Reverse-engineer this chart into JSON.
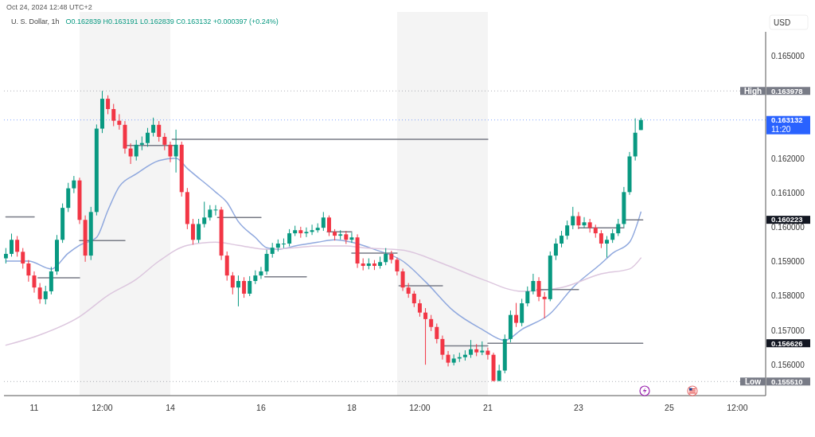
{
  "chart_data": {
    "type": "candlestick",
    "title": "U. S. Dollar, 1h",
    "subtitle": "O0.162839 H0.163191 L0.162839 C0.163132 +0.000397 (+0.24%)",
    "ylabel": "USD",
    "annotations": [
      "Oct 24, 2024 12:48 UTC+2",
      "11:20"
    ],
    "colors": [
      "#089981",
      "#089981",
      "#f23645",
      "#f23645",
      "#f23645",
      "#f23645",
      "#f23645",
      "#089981",
      "#089981",
      "#089981",
      "#089981",
      "#089981",
      "#089981",
      "#f23645",
      "#f23645",
      "#089981",
      "#089981",
      "#089981",
      "#f23645",
      "#f23645",
      "#f23645",
      "#f23645",
      "#f23645",
      "#089981",
      "#089981",
      "#089981",
      "#089981",
      "#f23645",
      "#f23645",
      "#f23645",
      "#089981",
      "#f23645",
      "#f23645",
      "#f23645",
      "#089981",
      "#089981",
      "#089981",
      "#089981",
      "#f23645",
      "#f23645",
      "#f23645",
      "#089981",
      "#f23645",
      "#089981",
      "#089981",
      "#089981",
      "#089981",
      "#089981",
      "#089981",
      "#089981",
      "#089981",
      "#089981",
      "#f23645",
      "#089981",
      "#089981",
      "#089981",
      "#089981",
      "#f23645",
      "#f23645",
      "#089981",
      "#f23645",
      "#089981",
      "#f23645",
      "#f23645",
      "#089981",
      "#f23645",
      "#089981",
      "#089981",
      "#f23645",
      "#f23645",
      "#f23645",
      "#f23645",
      "#f23645",
      "#f23645",
      "#f23645",
      "#f23645",
      "#f23645",
      "#f23645",
      "#f23645",
      "#089981",
      "#089981",
      "#089981",
      "#089981",
      "#f23645",
      "#089981",
      "#f23645",
      "#f23645",
      "#089981",
      "#089981",
      "#089981",
      "#f23645",
      "#089981",
      "#089981",
      "#089981",
      "#f23645",
      "#f23645",
      "#089981",
      "#089981",
      "#089981",
      "#089981",
      "#089981",
      "#f23645",
      "#089981",
      "#f23645",
      "#f23645",
      "#f23645",
      "#089981",
      "#089981",
      "#089981",
      "#089981",
      "#089981",
      "#089981",
      "#089981"
    ],
    "x": [
      "2024-10-10T09:00",
      "2024-10-10T12:00",
      "2024-10-10T15:00",
      "2024-10-10T18:00",
      "2024-10-10T21:00",
      "2024-10-11T00:00",
      "2024-10-11T03:00",
      "2024-10-11T06:00",
      "2024-10-11T09:00",
      "2024-10-11T12:00",
      "2024-10-11T15:00",
      "2024-10-11T18:00",
      "2024-10-11T21:00",
      "2024-10-12T00:00",
      "2024-10-12T03:00",
      "2024-10-12T06:00",
      "2024-10-12T09:00",
      "2024-10-12T12:00",
      "2024-10-12T15:00",
      "2024-10-12T18:00",
      "2024-10-12T21:00",
      "2024-10-13T00:00",
      "2024-10-13T03:00",
      "2024-10-13T06:00",
      "2024-10-13T09:00",
      "2024-10-13T12:00",
      "2024-10-13T15:00",
      "2024-10-13T18:00",
      "2024-10-13T21:00",
      "2024-10-14T00:00",
      "2024-10-14T03:00",
      "2024-10-14T06:00",
      "2024-10-14T09:00",
      "2024-10-14T12:00",
      "2024-10-14T15:00",
      "2024-10-14T18:00",
      "2024-10-14T21:00",
      "2024-10-15T00:00",
      "2024-10-15T03:00",
      "2024-10-15T06:00",
      "2024-10-15T09:00",
      "2024-10-15T12:00",
      "2024-10-15T15:00",
      "2024-10-15T18:00",
      "2024-10-15T21:00",
      "2024-10-16T00:00",
      "2024-10-16T03:00",
      "2024-10-16T06:00",
      "2024-10-16T09:00",
      "2024-10-16T12:00",
      "2024-10-16T15:00",
      "2024-10-16T18:00",
      "2024-10-16T21:00",
      "2024-10-17T00:00",
      "2024-10-17T03:00",
      "2024-10-17T06:00",
      "2024-10-17T09:00",
      "2024-10-17T12:00",
      "2024-10-17T15:00",
      "2024-10-17T18:00",
      "2024-10-17T21:00",
      "2024-10-18T00:00",
      "2024-10-18T03:00",
      "2024-10-18T06:00",
      "2024-10-18T09:00",
      "2024-10-18T12:00",
      "2024-10-18T15:00",
      "2024-10-18T18:00",
      "2024-10-18T21:00",
      "2024-10-19T00:00",
      "2024-10-19T03:00",
      "2024-10-19T06:00",
      "2024-10-19T09:00",
      "2024-10-19T12:00",
      "2024-10-19T15:00",
      "2024-10-19T18:00",
      "2024-10-19T21:00",
      "2024-10-20T00:00",
      "2024-10-20T03:00",
      "2024-10-20T06:00",
      "2024-10-20T09:00",
      "2024-10-20T12:00",
      "2024-10-20T15:00",
      "2024-10-20T18:00",
      "2024-10-20T21:00",
      "2024-10-21T00:00",
      "2024-10-21T03:00",
      "2024-10-21T06:00",
      "2024-10-21T09:00",
      "2024-10-21T12:00",
      "2024-10-21T15:00",
      "2024-10-21T18:00",
      "2024-10-21T21:00",
      "2024-10-22T00:00",
      "2024-10-22T03:00",
      "2024-10-22T06:00",
      "2024-10-22T09:00",
      "2024-10-22T12:00",
      "2024-10-22T15:00",
      "2024-10-22T18:00",
      "2024-10-22T21:00",
      "2024-10-23T00:00",
      "2024-10-23T03:00",
      "2024-10-23T06:00",
      "2024-10-23T09:00",
      "2024-10-23T12:00",
      "2024-10-23T15:00",
      "2024-10-23T18:00",
      "2024-10-23T21:00",
      "2024-10-24T00:00",
      "2024-10-24T03:00",
      "2024-10-24T06:00",
      "2024-10-24T09:00"
    ],
    "ohlc": [
      [
        0.1591,
        0.1594,
        0.15895,
        0.15923
      ],
      [
        0.15923,
        0.15982,
        0.15915,
        0.15964
      ],
      [
        0.15964,
        0.15975,
        0.15915,
        0.15929
      ],
      [
        0.15929,
        0.1594,
        0.1588,
        0.15895
      ],
      [
        0.15895,
        0.15905,
        0.15842,
        0.1586
      ],
      [
        0.1586,
        0.15872,
        0.1581,
        0.15825
      ],
      [
        0.15825,
        0.15838,
        0.15778,
        0.15791
      ],
      [
        0.15791,
        0.1583,
        0.15776,
        0.15814
      ],
      [
        0.15814,
        0.15885,
        0.15805,
        0.15872
      ],
      [
        0.15872,
        0.15978,
        0.15862,
        0.15964
      ],
      [
        0.15964,
        0.1607,
        0.15955,
        0.16057
      ],
      [
        0.16057,
        0.1613,
        0.16045,
        0.16114
      ],
      [
        0.16114,
        0.1615,
        0.161,
        0.16137
      ],
      [
        0.16137,
        0.16145,
        0.1601,
        0.16022
      ],
      [
        0.16022,
        0.16035,
        0.159,
        0.15918
      ],
      [
        0.15918,
        0.1606,
        0.15905,
        0.16045
      ],
      [
        0.16045,
        0.163,
        0.16035,
        0.16288
      ],
      [
        0.16288,
        0.163978,
        0.16275,
        0.16375
      ],
      [
        0.16375,
        0.16385,
        0.1633,
        0.16345
      ],
      [
        0.16345,
        0.1636,
        0.16295,
        0.16311
      ],
      [
        0.16311,
        0.1633,
        0.16285,
        0.16299
      ],
      [
        0.16299,
        0.1631,
        0.16215,
        0.1623
      ],
      [
        0.1623,
        0.16245,
        0.16185,
        0.16207
      ],
      [
        0.16207,
        0.16255,
        0.16195,
        0.16241
      ],
      [
        0.16241,
        0.16265,
        0.16225,
        0.16246
      ],
      [
        0.16246,
        0.1629,
        0.16235,
        0.16276
      ],
      [
        0.16276,
        0.1632,
        0.16265,
        0.16299
      ],
      [
        0.16299,
        0.1631,
        0.1625,
        0.16264
      ],
      [
        0.16264,
        0.16275,
        0.16225,
        0.16241
      ],
      [
        0.16241,
        0.1625,
        0.1619,
        0.16207
      ],
      [
        0.16207,
        0.16285,
        0.1616,
        0.16241
      ],
      [
        0.16241,
        0.1625,
        0.1609,
        0.16103
      ],
      [
        0.16103,
        0.16115,
        0.15995,
        0.1601
      ],
      [
        0.1601,
        0.16025,
        0.1595,
        0.15964
      ],
      [
        0.15964,
        0.16025,
        0.15955,
        0.1601
      ],
      [
        0.1601,
        0.16075,
        0.16,
        0.16029
      ],
      [
        0.16029,
        0.16065,
        0.1602,
        0.16052
      ],
      [
        0.16052,
        0.16065,
        0.16035,
        0.16052
      ],
      [
        0.16052,
        0.1606,
        0.15905,
        0.15918
      ],
      [
        0.15918,
        0.1593,
        0.15845,
        0.1586
      ],
      [
        0.1586,
        0.1587,
        0.15805,
        0.15825
      ],
      [
        0.15825,
        0.1586,
        0.1577,
        0.15844
      ],
      [
        0.15844,
        0.15855,
        0.15795,
        0.15807
      ],
      [
        0.15807,
        0.15858,
        0.158,
        0.15844
      ],
      [
        0.15844,
        0.15875,
        0.15835,
        0.1586
      ],
      [
        0.1586,
        0.15885,
        0.1585,
        0.15872
      ],
      [
        0.15872,
        0.15935,
        0.15862,
        0.15923
      ],
      [
        0.15923,
        0.15955,
        0.15912,
        0.15941
      ],
      [
        0.15941,
        0.15965,
        0.1593,
        0.15953
      ],
      [
        0.15953,
        0.15968,
        0.1594,
        0.15953
      ],
      [
        0.15953,
        0.15995,
        0.15945,
        0.15983
      ],
      [
        0.15983,
        0.16005,
        0.15975,
        0.15992
      ],
      [
        0.15992,
        0.16002,
        0.1597,
        0.15983
      ],
      [
        0.15983,
        0.16,
        0.15972,
        0.15987
      ],
      [
        0.15987,
        0.16008,
        0.15978,
        0.15992
      ],
      [
        0.15992,
        0.16012,
        0.15985,
        0.15999
      ],
      [
        0.15999,
        0.16045,
        0.1599,
        0.16029
      ],
      [
        0.16029,
        0.16035,
        0.15975,
        0.15987
      ],
      [
        0.15987,
        0.15995,
        0.15962,
        0.15976
      ],
      [
        0.15976,
        0.15992,
        0.15965,
        0.1598
      ],
      [
        0.1598,
        0.1599,
        0.15952,
        0.15964
      ],
      [
        0.15964,
        0.15985,
        0.15955,
        0.15971
      ],
      [
        0.15971,
        0.1598,
        0.15882,
        0.15895
      ],
      [
        0.15895,
        0.1591,
        0.15875,
        0.15888
      ],
      [
        0.15888,
        0.1591,
        0.15878,
        0.15895
      ],
      [
        0.15895,
        0.15905,
        0.15876,
        0.15888
      ],
      [
        0.15888,
        0.15915,
        0.1588,
        0.15899
      ],
      [
        0.15899,
        0.1594,
        0.1589,
        0.15923
      ],
      [
        0.15923,
        0.15932,
        0.15895,
        0.15906
      ],
      [
        0.15906,
        0.15912,
        0.1586,
        0.15872
      ],
      [
        0.15872,
        0.1588,
        0.15815,
        0.15825
      ],
      [
        0.15825,
        0.15838,
        0.15795,
        0.15807
      ],
      [
        0.15807,
        0.15815,
        0.15768,
        0.15779
      ],
      [
        0.15779,
        0.1579,
        0.1574,
        0.15752
      ],
      [
        0.15752,
        0.15765,
        0.156,
        0.15733
      ],
      [
        0.15733,
        0.15745,
        0.15698,
        0.1571
      ],
      [
        0.1571,
        0.1572,
        0.15662,
        0.15675
      ],
      [
        0.15675,
        0.15685,
        0.15615,
        0.15629
      ],
      [
        0.15629,
        0.1564,
        0.15595,
        0.15606
      ],
      [
        0.15606,
        0.1563,
        0.15598,
        0.15618
      ],
      [
        0.15618,
        0.15635,
        0.15608,
        0.15622
      ],
      [
        0.15622,
        0.15642,
        0.15612,
        0.15629
      ],
      [
        0.15629,
        0.15672,
        0.1562,
        0.15645
      ],
      [
        0.15645,
        0.1566,
        0.15625,
        0.15636
      ],
      [
        0.15636,
        0.15668,
        0.15628,
        0.15641
      ],
      [
        0.15641,
        0.1565,
        0.15615,
        0.15629
      ],
      [
        0.15629,
        0.15635,
        0.15551,
        0.15553
      ],
      [
        0.15553,
        0.156,
        0.15552,
        0.15583
      ],
      [
        0.15583,
        0.15688,
        0.15575,
        0.15675
      ],
      [
        0.15675,
        0.15758,
        0.15665,
        0.15745
      ],
      [
        0.15745,
        0.1578,
        0.1571,
        0.15722
      ],
      [
        0.15722,
        0.15792,
        0.15712,
        0.15779
      ],
      [
        0.15779,
        0.15828,
        0.1577,
        0.15814
      ],
      [
        0.15814,
        0.15865,
        0.15805,
        0.15844
      ],
      [
        0.15844,
        0.15855,
        0.15785,
        0.15798
      ],
      [
        0.15798,
        0.15812,
        0.15735,
        0.15791
      ],
      [
        0.15791,
        0.1593,
        0.15785,
        0.15918
      ],
      [
        0.15918,
        0.15968,
        0.15905,
        0.15953
      ],
      [
        0.15953,
        0.1599,
        0.15942,
        0.15976
      ],
      [
        0.15976,
        0.1602,
        0.15965,
        0.16006
      ],
      [
        0.16006,
        0.1606,
        0.15995,
        0.16033
      ],
      [
        0.16033,
        0.16045,
        0.15995,
        0.16006
      ],
      [
        0.16006,
        0.1603,
        0.15998,
        0.16015
      ],
      [
        0.16015,
        0.16025,
        0.15985,
        0.15999
      ],
      [
        0.15999,
        0.16008,
        0.1597,
        0.15983
      ],
      [
        0.15983,
        0.15992,
        0.1594,
        0.15953
      ],
      [
        0.15953,
        0.15975,
        0.15912,
        0.15964
      ],
      [
        0.15964,
        0.15995,
        0.15955,
        0.15983
      ],
      [
        0.15983,
        0.16025,
        0.15975,
        0.1601
      ],
      [
        0.1601,
        0.16118,
        0.16,
        0.16103
      ],
      [
        0.16103,
        0.1622,
        0.16095,
        0.16207
      ],
      [
        0.16207,
        0.16318,
        0.16195,
        0.16276
      ],
      [
        0.162839,
        0.163191,
        0.162839,
        0.163132
      ]
    ],
    "series": [
      {
        "type": "line",
        "color": "#8fa8de",
        "x": [
          "2024-10-10T09:00",
          "2024-10-10T21:00",
          "2024-10-11T09:00",
          "2024-10-11T18:00",
          "2024-10-12T00:00",
          "2024-10-12T09:00",
          "2024-10-12T15:00",
          "2024-10-12T21:00",
          "2024-10-13T06:00",
          "2024-10-13T18:00",
          "2024-10-14T03:00",
          "2024-10-14T09:00",
          "2024-10-15T00:00",
          "2024-10-15T06:00",
          "2024-10-15T12:00",
          "2024-10-15T21:00",
          "2024-10-16T03:00",
          "2024-10-16T09:00",
          "2024-10-16T18:00",
          "2024-10-17T06:00",
          "2024-10-17T15:00",
          "2024-10-18T00:00",
          "2024-10-18T12:00",
          "2024-10-19T03:00",
          "2024-10-19T15:00",
          "2024-10-20T06:00",
          "2024-10-20T21:00",
          "2024-10-21T09:00",
          "2024-10-21T18:00",
          "2024-10-22T09:00",
          "2024-10-22T21:00",
          "2024-10-23T12:00",
          "2024-10-23T18:00",
          "2024-10-24T03:00",
          "2024-10-24T09:00"
        ],
        "values": [
          0.15902,
          0.15902,
          0.15879,
          0.15925,
          0.15948,
          0.15971,
          0.1605,
          0.16119,
          0.16156,
          0.16195,
          0.16202,
          0.16172,
          0.16103,
          0.16073,
          0.16017,
          0.15971,
          0.15941,
          0.15936,
          0.15946,
          0.15957,
          0.15964,
          0.15957,
          0.15936,
          0.15902,
          0.15842,
          0.15756,
          0.15703,
          0.15671,
          0.15703,
          0.15749,
          0.15825,
          0.15895,
          0.15925,
          0.15957,
          0.16045
        ]
      },
      {
        "type": "line",
        "color": "#dcc6de",
        "x": [
          "2024-10-10T09:00",
          "2024-10-11T03:00",
          "2024-10-12T00:00",
          "2024-10-12T15:00",
          "2024-10-13T06:00",
          "2024-10-13T18:00",
          "2024-10-14T09:00",
          "2024-10-15T00:00",
          "2024-10-15T12:00",
          "2024-10-16T03:00",
          "2024-10-16T18:00",
          "2024-10-17T06:00",
          "2024-10-17T21:00",
          "2024-10-18T06:00",
          "2024-10-19T03:00",
          "2024-10-20T00:00",
          "2024-10-20T21:00",
          "2024-10-21T18:00",
          "2024-10-22T15:00",
          "2024-10-23T12:00",
          "2024-10-24T03:00",
          "2024-10-24T09:00"
        ],
        "values": [
          0.15657,
          0.15687,
          0.1574,
          0.15802,
          0.15849,
          0.15902,
          0.15948,
          0.15957,
          0.15948,
          0.15936,
          0.15941,
          0.15946,
          0.15946,
          0.15941,
          0.15934,
          0.15895,
          0.15849,
          0.15814,
          0.15825,
          0.15865,
          0.15879,
          0.15911
        ]
      },
      {
        "type": "line",
        "color": "#787b86",
        "x": [
          "2024-10-10T09:00",
          "2024-10-11T00:00"
        ],
        "values": [
          0.16031,
          0.16031
        ]
      },
      {
        "type": "line",
        "color": "#787b86",
        "x": [
          "2024-10-11T02:00",
          "2024-10-12T00:00"
        ],
        "values": [
          0.15853,
          0.15853
        ]
      },
      {
        "type": "line",
        "color": "#787b86",
        "x": [
          "2024-10-12T00:00",
          "2024-10-13T00:00"
        ],
        "values": [
          0.15962,
          0.15962
        ]
      },
      {
        "type": "line",
        "color": "#787b86",
        "x": [
          "2024-10-13T00:00",
          "2024-10-14T03:00"
        ],
        "values": [
          0.16239,
          0.16239
        ]
      },
      {
        "type": "line",
        "color": "#787b86",
        "x": [
          "2024-10-14T01:00",
          "2024-10-21T00:00"
        ],
        "values": [
          0.16257,
          0.16257
        ]
      },
      {
        "type": "line",
        "color": "#787b86",
        "x": [
          "2024-10-15T01:00",
          "2024-10-16T00:00"
        ],
        "values": [
          0.16029,
          0.16029
        ]
      },
      {
        "type": "line",
        "color": "#787b86",
        "x": [
          "2024-10-16T02:00",
          "2024-10-17T00:00"
        ],
        "values": [
          0.15856,
          0.15856
        ]
      },
      {
        "type": "line",
        "color": "#787b86",
        "x": [
          "2024-10-17T11:00",
          "2024-10-18T00:00"
        ],
        "values": [
          0.15987,
          0.15987
        ]
      },
      {
        "type": "line",
        "color": "#787b86",
        "x": [
          "2024-10-18T00:00",
          "2024-10-19T00:00"
        ],
        "values": [
          0.15925,
          0.15925
        ]
      },
      {
        "type": "line",
        "color": "#787b86",
        "x": [
          "2024-10-19T01:00",
          "2024-10-20T00:00"
        ],
        "values": [
          0.1583,
          0.1583
        ]
      },
      {
        "type": "line",
        "color": "#787b86",
        "x": [
          "2024-10-20T01:00",
          "2024-10-21T00:00"
        ],
        "values": [
          0.15655,
          0.15655
        ]
      },
      {
        "type": "line",
        "color": "#787b86",
        "x": [
          "2024-10-21T00:00",
          "2024-10-24T10:00"
        ],
        "values": [
          0.156626,
          0.156626
        ]
      },
      {
        "type": "line",
        "color": "#787b86",
        "x": [
          "2024-10-22T02:00",
          "2024-10-23T00:00"
        ],
        "values": [
          0.15819,
          0.15819
        ]
      },
      {
        "type": "line",
        "color": "#787b86",
        "x": [
          "2024-10-23T00:00",
          "2024-10-24T00:00"
        ],
        "values": [
          0.15999,
          0.15999
        ]
      },
      {
        "type": "line",
        "color": "#787b86",
        "x": [
          "2024-10-24T00:00",
          "2024-10-24T10:00"
        ],
        "values": [
          0.160223,
          0.160223
        ]
      }
    ],
    "ref_lines": [
      {
        "axis": "y",
        "value": 0.163978,
        "label": "High",
        "color": "#787b86",
        "line_style": "dotted"
      },
      {
        "axis": "y",
        "value": 0.163132,
        "color": "#2962ff",
        "line_style": "dotted"
      },
      {
        "axis": "y",
        "value": 0.15551,
        "label": "Low",
        "color": "#787b86",
        "line_style": "dotted"
      }
    ],
    "bands": [
      {
        "axis": "x",
        "from": "2024-10-12",
        "to": "2024-10-14",
        "color": "#f4f4f4"
      },
      {
        "axis": "x",
        "from": "2024-10-19",
        "to": "2024-10-21",
        "color": "#f4f4f4"
      }
    ],
    "xlim": [
      "2024-10-10T08:00",
      "2024-10-27T03:00"
    ],
    "xticks": [
      {
        "value": "2024-10-11",
        "label": "11"
      },
      {
        "value": "2024-10-12T12:00",
        "label": "12:00"
      },
      {
        "value": "2024-10-14",
        "label": "14"
      },
      {
        "value": "2024-10-16",
        "label": "16"
      },
      {
        "value": "2024-10-18",
        "label": "18"
      },
      {
        "value": "2024-10-19T12:00",
        "label": "12:00"
      },
      {
        "value": "2024-10-21",
        "label": "21"
      },
      {
        "value": "2024-10-23",
        "label": "23"
      },
      {
        "value": "2024-10-25",
        "label": "25"
      },
      {
        "value": "2024-10-26T12:00",
        "label": "12:00"
      }
    ],
    "ylim": [
      0.1551,
      0.1657
    ],
    "yticks": [
      {
        "value": 0.15551,
        "label": "0.155510"
      },
      {
        "value": 0.156,
        "label": "0.156000"
      },
      {
        "value": 0.156626,
        "label": "0.156626"
      },
      {
        "value": 0.157,
        "label": "0.157000"
      },
      {
        "value": 0.158,
        "label": "0.158000"
      },
      {
        "value": 0.159,
        "label": "0.159000"
      },
      {
        "value": 0.16,
        "label": "0.160000"
      },
      {
        "value": 0.160223,
        "label": "0.160223"
      },
      {
        "value": 0.161,
        "label": "0.161000"
      },
      {
        "value": 0.162,
        "label": "0.162000"
      },
      {
        "value": 0.163132,
        "label": "0.163132"
      },
      {
        "value": 0.163978,
        "label": "0.163978"
      },
      {
        "value": 0.165,
        "label": "0.165000"
      }
    ]
  }
}
